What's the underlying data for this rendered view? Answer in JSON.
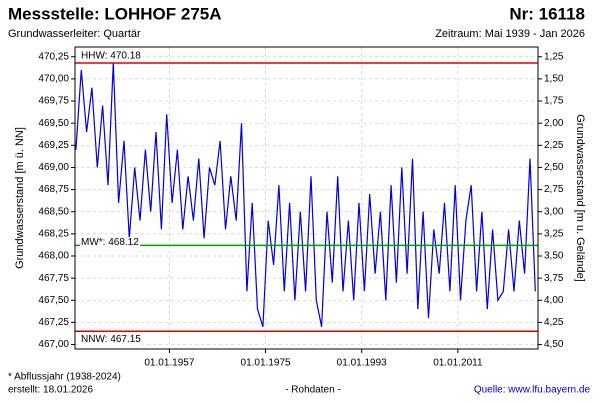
{
  "chart_data": {
    "type": "line",
    "title": "Messstelle: LOHHOF 275A",
    "title_right": "Nr: 16118",
    "subtitle": "Grundwasserleiter: Quartär",
    "subtitle_right": "Zeitraum: Mai 1939 - Jan 2026",
    "y_label": "Grundwasserstand [m ü. NN]",
    "y2_label": "Grundwasserstand [m u. Gelände]",
    "footnote": "* Abflussjahr (1938-2024)",
    "created": "erstellt:  18.01.2026",
    "data_note": "- Rohdaten -",
    "source": "Quelle:  www.lfu.bayern.de",
    "grid": true,
    "xlim": [
      1939.33,
      2026.0
    ],
    "xticks": [
      {
        "value": 1957,
        "label": "01.01.1957"
      },
      {
        "value": 1975,
        "label": "01.01.1975"
      },
      {
        "value": 1993,
        "label": "01.01.1993"
      },
      {
        "value": 2011,
        "label": "01.01.2011"
      }
    ],
    "ylim": [
      466.95,
      470.36
    ],
    "yticks": [
      {
        "value": 467.0,
        "label": "467,00"
      },
      {
        "value": 467.25,
        "label": "467,25"
      },
      {
        "value": 467.5,
        "label": "467,50"
      },
      {
        "value": 467.75,
        "label": "467,75"
      },
      {
        "value": 468.0,
        "label": "468,00"
      },
      {
        "value": 468.25,
        "label": "468,25"
      },
      {
        "value": 468.5,
        "label": "468,50"
      },
      {
        "value": 468.75,
        "label": "468,75"
      },
      {
        "value": 469.0,
        "label": "469,00"
      },
      {
        "value": 469.25,
        "label": "469,25"
      },
      {
        "value": 469.5,
        "label": "469,50"
      },
      {
        "value": 469.75,
        "label": "469,75"
      },
      {
        "value": 470.0,
        "label": "470,00"
      },
      {
        "value": 470.25,
        "label": "470,25"
      }
    ],
    "y2lim": [
      4.55,
      1.14
    ],
    "y2ticks": [
      {
        "value": 4.5,
        "label": "4,50"
      },
      {
        "value": 4.25,
        "label": "4,25"
      },
      {
        "value": 4.0,
        "label": "4,00"
      },
      {
        "value": 3.75,
        "label": "3,75"
      },
      {
        "value": 3.5,
        "label": "3,50"
      },
      {
        "value": 3.25,
        "label": "3,25"
      },
      {
        "value": 3.0,
        "label": "3,00"
      },
      {
        "value": 2.75,
        "label": "2,75"
      },
      {
        "value": 2.5,
        "label": "2,50"
      },
      {
        "value": 2.25,
        "label": "2,25"
      },
      {
        "value": 2.0,
        "label": "2,00"
      },
      {
        "value": 1.75,
        "label": "1,75"
      },
      {
        "value": 1.5,
        "label": "1,50"
      },
      {
        "value": 1.25,
        "label": "1,25"
      }
    ],
    "reference_lines": [
      {
        "label": "HHW: 470.18",
        "value": 470.18,
        "color": "#e00000"
      },
      {
        "label": "MW*: 468.12",
        "value": 468.12,
        "color": "#00a000"
      },
      {
        "label": "NNW: 467.15",
        "value": 467.15,
        "color": "#e00000"
      }
    ],
    "x": [
      1939.5,
      1940.5,
      1941.5,
      1942.5,
      1943.5,
      1944.5,
      1945.5,
      1946.5,
      1947.5,
      1948.5,
      1949.5,
      1950.5,
      1951.5,
      1952.5,
      1953.5,
      1954.5,
      1955.5,
      1956.5,
      1957.5,
      1958.5,
      1959.5,
      1960.5,
      1961.5,
      1962.5,
      1963.5,
      1964.5,
      1965.5,
      1966.5,
      1967.5,
      1968.5,
      1969.5,
      1970.5,
      1971.5,
      1972.5,
      1973.5,
      1974.5,
      1975.5,
      1976.5,
      1977.5,
      1978.5,
      1979.5,
      1980.5,
      1981.5,
      1982.5,
      1983.5,
      1984.5,
      1985.5,
      1986.5,
      1987.5,
      1988.5,
      1989.5,
      1990.5,
      1991.5,
      1992.5,
      1993.5,
      1994.5,
      1995.5,
      1996.5,
      1997.5,
      1998.5,
      1999.5,
      2000.5,
      2001.5,
      2002.5,
      2003.5,
      2004.5,
      2005.5,
      2006.5,
      2007.5,
      2008.5,
      2009.5,
      2010.5,
      2011.5,
      2012.5,
      2013.5,
      2014.5,
      2015.5,
      2016.5,
      2017.5,
      2018.5,
      2019.5,
      2020.5,
      2021.5,
      2022.5,
      2023.5,
      2024.5,
      2025.5
    ],
    "series": [
      {
        "name": "Grundwasserstand",
        "color": "#0000e0",
        "values": [
          469.2,
          470.1,
          469.4,
          469.9,
          469.0,
          469.7,
          468.8,
          470.18,
          468.6,
          469.3,
          468.2,
          469.0,
          468.4,
          469.2,
          468.5,
          469.4,
          468.3,
          469.6,
          468.6,
          469.2,
          468.3,
          468.9,
          468.4,
          469.1,
          468.2,
          469.0,
          468.8,
          469.3,
          468.3,
          468.9,
          468.4,
          469.5,
          467.6,
          468.6,
          467.4,
          467.2,
          468.4,
          467.9,
          468.8,
          467.6,
          468.6,
          467.5,
          468.5,
          467.6,
          468.9,
          467.5,
          467.2,
          468.5,
          467.7,
          468.9,
          467.6,
          468.4,
          467.5,
          468.6,
          467.6,
          468.7,
          467.8,
          468.5,
          467.5,
          468.8,
          467.7,
          469.0,
          467.8,
          469.1,
          467.4,
          468.5,
          467.3,
          468.3,
          467.8,
          468.6,
          467.6,
          468.8,
          467.5,
          468.4,
          468.8,
          467.6,
          468.5,
          467.4,
          468.3,
          467.5,
          467.6,
          468.3,
          467.6,
          468.4,
          467.8,
          469.1,
          467.6
        ]
      }
    ]
  }
}
